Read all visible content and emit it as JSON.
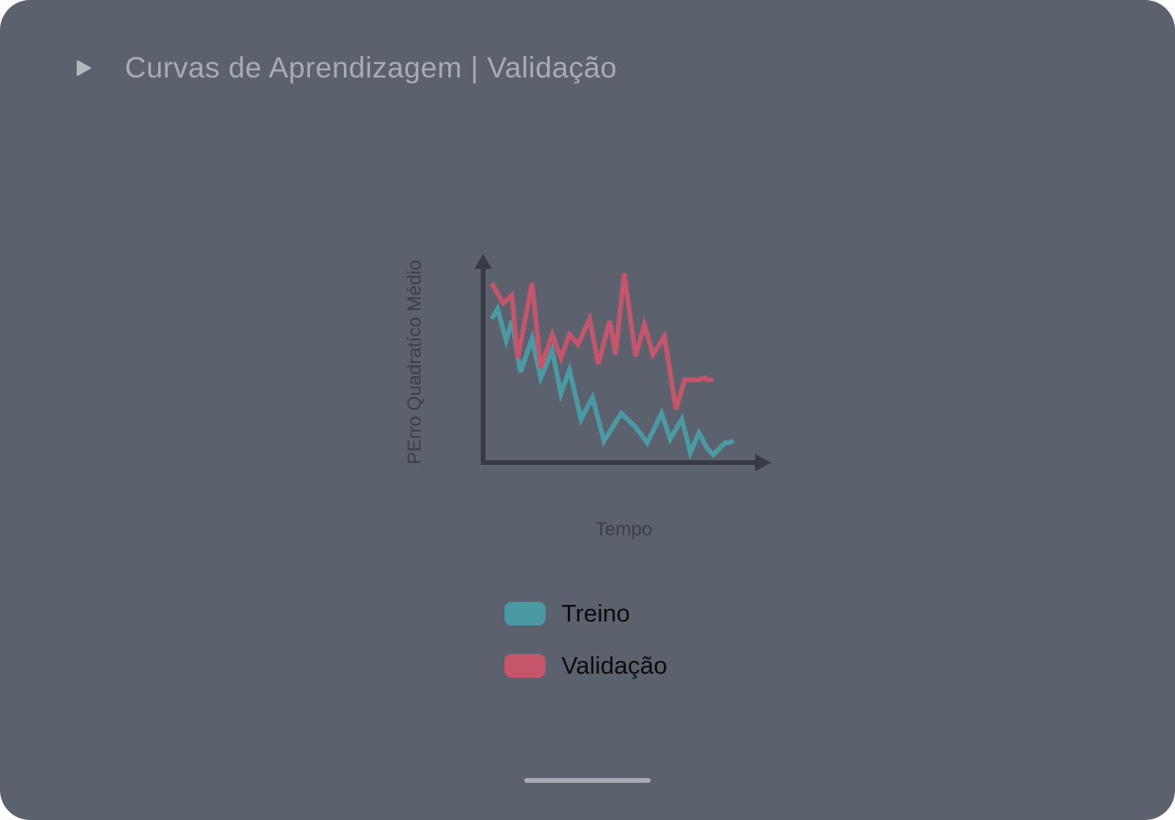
{
  "header": {
    "title": "Curvas de Aprendizagem | Validação",
    "icon": "play-icon"
  },
  "colors": {
    "background": "#5c626d",
    "axis": "#363b46",
    "axis_label": "#3a3f4a",
    "train": "#4a9aa3",
    "validation": "#c4556b"
  },
  "chart_data": {
    "type": "line",
    "title": "",
    "xlabel": "Tempo",
    "ylabel": "PErro Quadratíco Médio",
    "xlim": [
      0,
      100
    ],
    "ylim": [
      0,
      100
    ],
    "grid": false,
    "legend_placement": "bottom",
    "series": [
      {
        "name": "Treino",
        "color": "#4a9aa3",
        "x": [
          3,
          5,
          8,
          10,
          13,
          17,
          20,
          24,
          27,
          30,
          34,
          38,
          42,
          48,
          53,
          57,
          62,
          65,
          69,
          72,
          75,
          78,
          80,
          84,
          85,
          87
        ],
        "y": [
          73,
          78,
          62,
          72,
          46,
          63,
          43,
          57,
          35,
          47,
          22,
          33,
          11,
          25,
          18,
          10,
          25,
          12,
          22,
          5,
          15,
          7,
          4,
          10,
          10,
          11
        ]
      },
      {
        "name": "Validação",
        "color": "#c4556b",
        "x": [
          3,
          7,
          10,
          12,
          17,
          20,
          24,
          27,
          30,
          33,
          37,
          40,
          44,
          46,
          49,
          53,
          56,
          59,
          63,
          67,
          70,
          75,
          77,
          78,
          80
        ],
        "y": [
          91,
          81,
          85,
          53,
          91,
          48,
          65,
          53,
          65,
          60,
          73,
          50,
          72,
          55,
          96,
          54,
          70,
          55,
          64,
          27,
          42,
          42,
          43,
          42,
          42
        ]
      }
    ]
  },
  "legend": {
    "items": [
      {
        "label": "Treino",
        "color": "#4a9aa3"
      },
      {
        "label": "Validação",
        "color": "#c4556b"
      }
    ]
  }
}
